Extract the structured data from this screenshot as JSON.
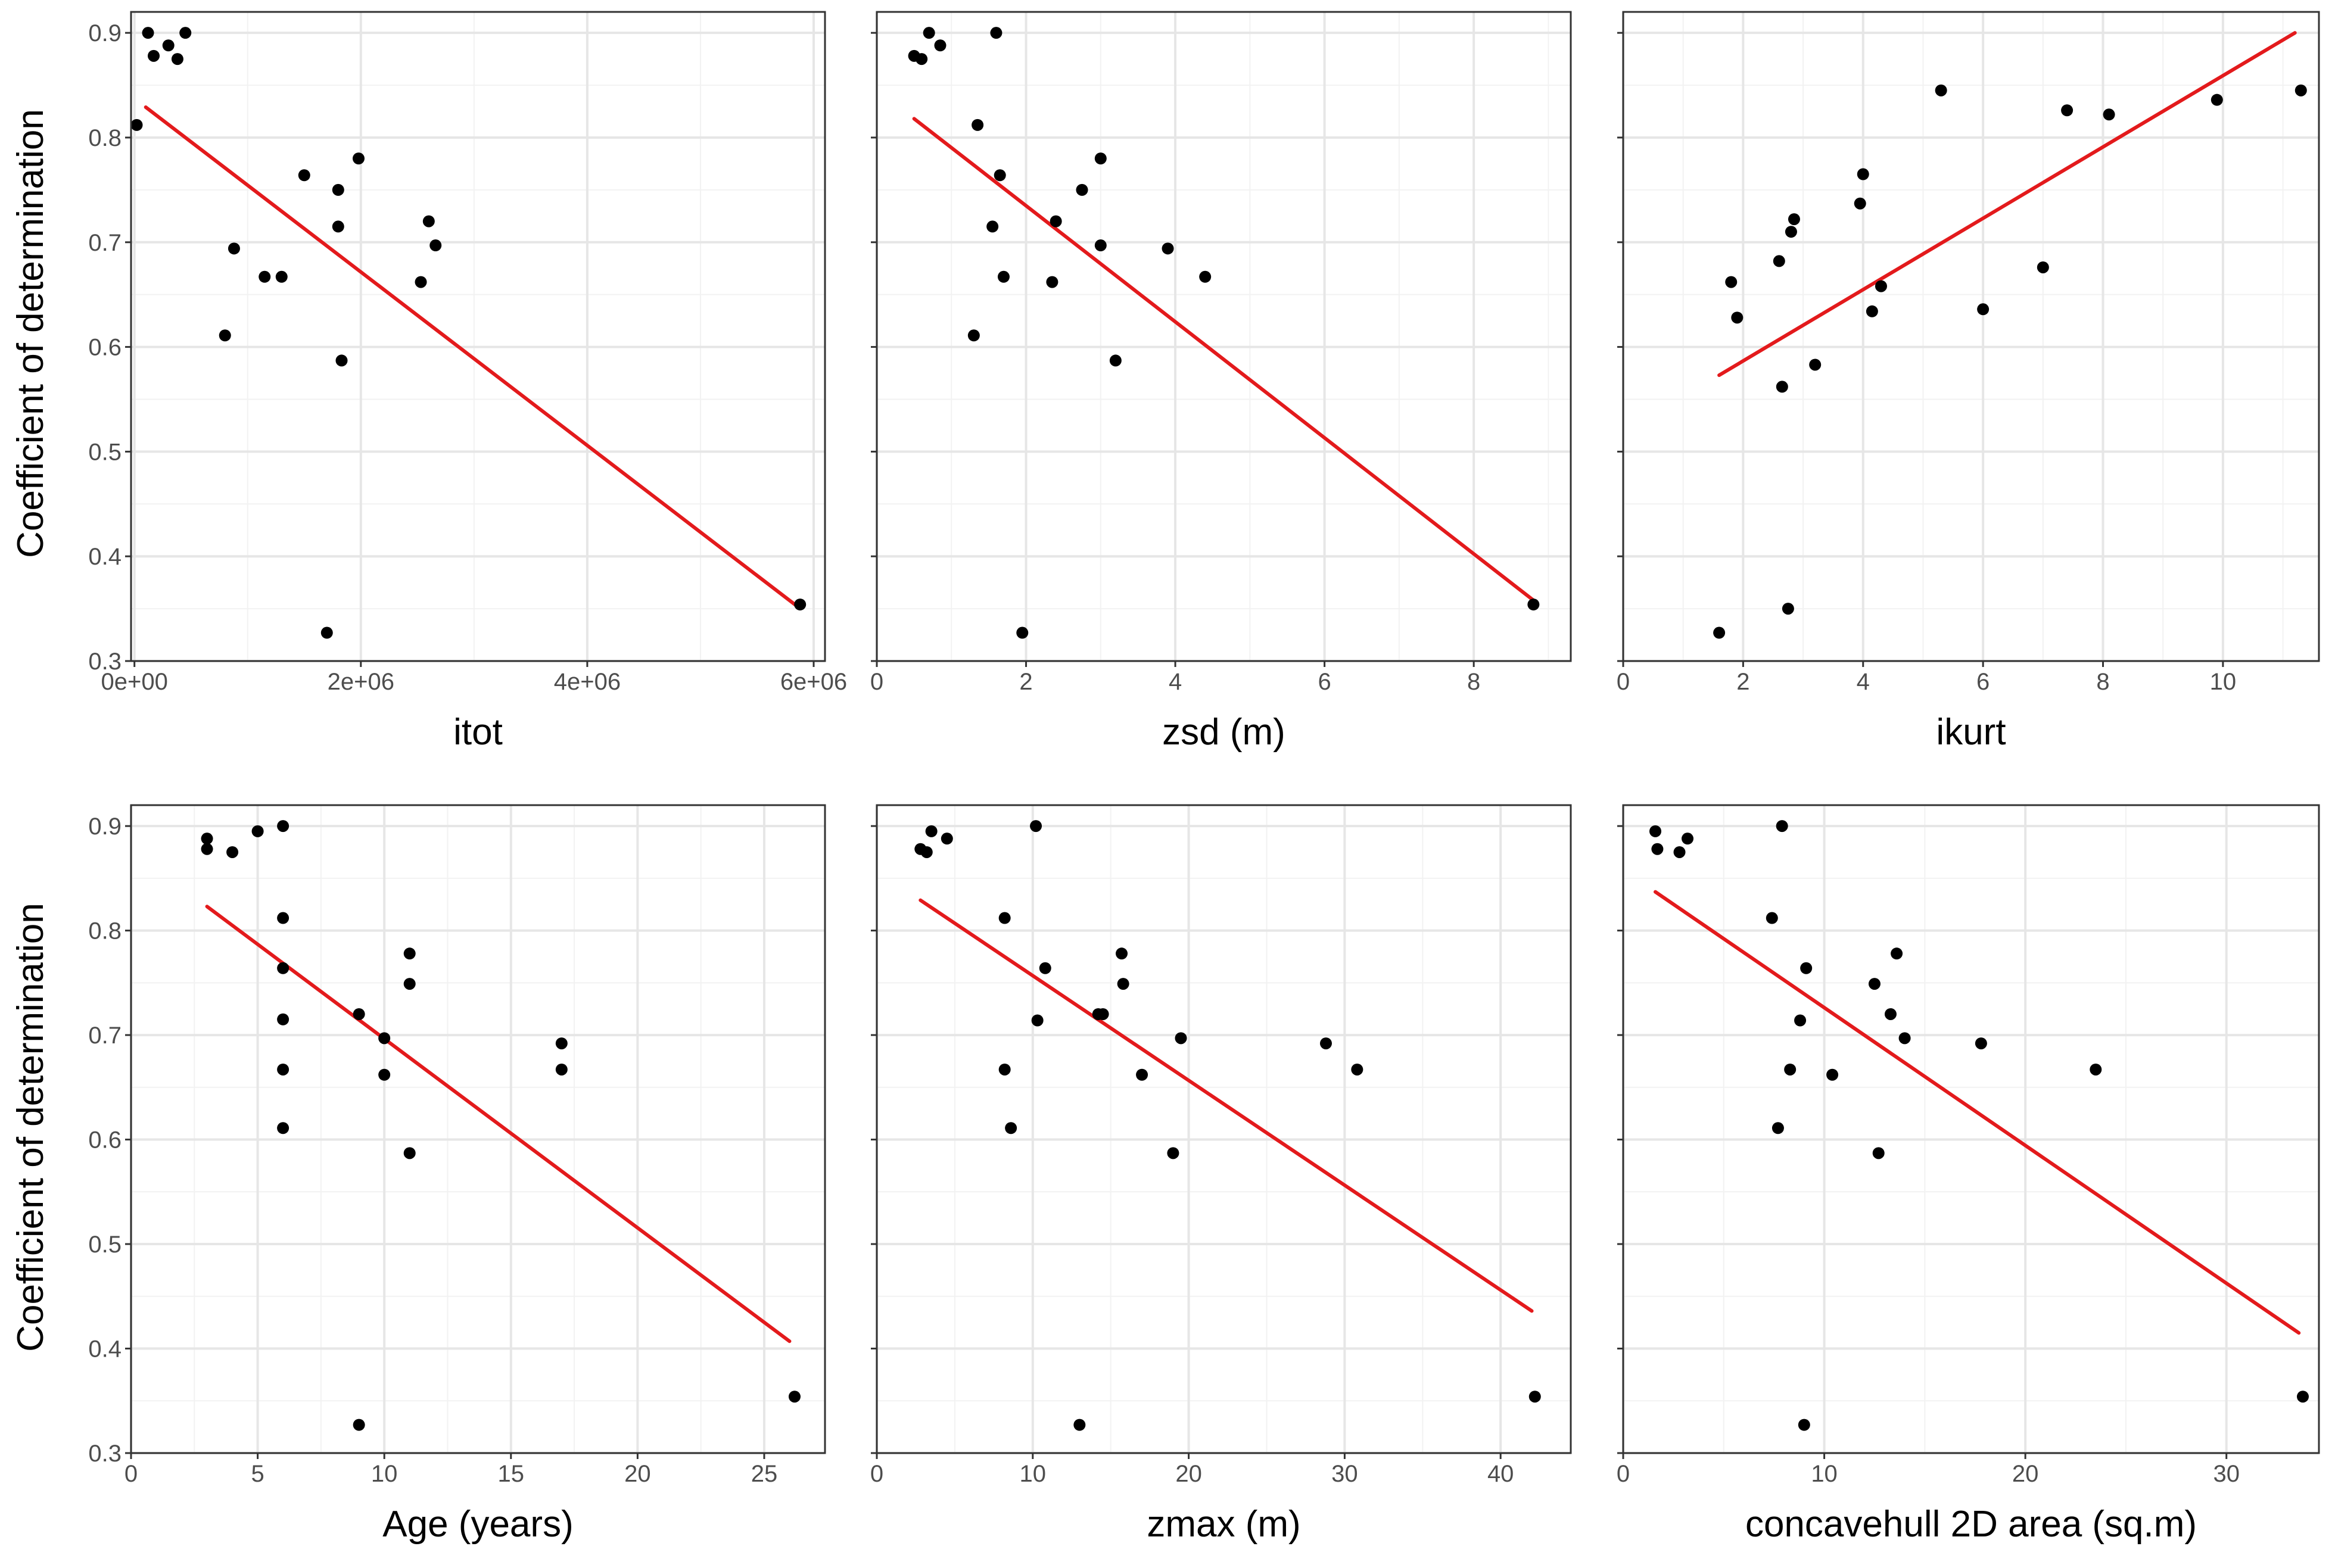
{
  "figure": {
    "ylabel": "Coefficient of determination",
    "point_color": "#000000",
    "line_color": "#e31a1c",
    "background": "#ffffff"
  },
  "chart_data": [
    {
      "type": "scatter",
      "xlabel": "itot",
      "ylabel": "Coefficient of determination",
      "xlim": [
        -30000,
        6100000
      ],
      "ylim": [
        0.3,
        0.92
      ],
      "xticks": [
        0,
        2000000,
        4000000,
        6000000
      ],
      "xtick_labels": [
        "0e+00",
        "2e+06",
        "4e+06",
        "6e+06"
      ],
      "yticks": [
        0.3,
        0.4,
        0.5,
        0.6,
        0.7,
        0.8,
        0.9
      ],
      "ytick_labels": [
        "0.3",
        "0.4",
        "0.5",
        "0.6",
        "0.7",
        "0.8",
        "0.9"
      ],
      "show_yticks": true,
      "x": [
        20000,
        120000,
        170000,
        300000,
        380000,
        450000,
        800000,
        880000,
        1150000,
        1300000,
        1500000,
        1700000,
        1800000,
        1800000,
        1830000,
        1980000,
        2530000,
        2600000,
        2660000,
        5880000
      ],
      "y": [
        0.812,
        0.9,
        0.878,
        0.888,
        0.875,
        0.9,
        0.611,
        0.694,
        0.667,
        0.667,
        0.764,
        0.327,
        0.75,
        0.715,
        0.587,
        0.78,
        0.662,
        0.72,
        0.697,
        0.354
      ],
      "fit": {
        "x": [
          100000,
          5870000
        ],
        "y": [
          0.829,
          0.351
        ]
      }
    },
    {
      "type": "scatter",
      "xlabel": "zsd (m)",
      "ylabel": "",
      "xlim": [
        0,
        9.3
      ],
      "ylim": [
        0.3,
        0.92
      ],
      "xticks": [
        0,
        2,
        4,
        6,
        8
      ],
      "xtick_labels": [
        "0",
        "2",
        "4",
        "6",
        "8"
      ],
      "yticks": [
        0.3,
        0.4,
        0.5,
        0.6,
        0.7,
        0.8,
        0.9
      ],
      "ytick_labels": [
        "0.3",
        "0.4",
        "0.5",
        "0.6",
        "0.7",
        "0.8",
        "0.9"
      ],
      "show_yticks": false,
      "x": [
        0.5,
        0.6,
        0.7,
        0.85,
        1.3,
        1.35,
        1.55,
        1.6,
        1.65,
        1.7,
        1.95,
        2.35,
        2.4,
        2.75,
        3.0,
        3.0,
        3.2,
        3.9,
        4.4,
        8.8
      ],
      "y": [
        0.878,
        0.875,
        0.9,
        0.888,
        0.611,
        0.812,
        0.715,
        0.9,
        0.764,
        0.667,
        0.327,
        0.662,
        0.72,
        0.75,
        0.697,
        0.78,
        0.587,
        0.694,
        0.667,
        0.354
      ],
      "fit": {
        "x": [
          0.5,
          8.8
        ],
        "y": [
          0.818,
          0.358
        ]
      }
    },
    {
      "type": "scatter",
      "xlabel": "ikurt",
      "ylabel": "",
      "xlim": [
        0,
        11.6
      ],
      "ylim": [
        0.3,
        0.92
      ],
      "xticks": [
        0,
        2,
        4,
        6,
        8,
        10
      ],
      "xtick_labels": [
        "0",
        "2",
        "4",
        "6",
        "8",
        "10"
      ],
      "yticks": [
        0.3,
        0.4,
        0.5,
        0.6,
        0.7,
        0.8,
        0.9
      ],
      "ytick_labels": [
        "0.3",
        "0.4",
        "0.5",
        "0.6",
        "0.7",
        "0.8",
        "0.9"
      ],
      "show_yticks": false,
      "x": [
        1.6,
        1.8,
        1.9,
        2.6,
        2.65,
        2.75,
        2.8,
        2.85,
        3.2,
        3.95,
        4.0,
        4.15,
        4.3,
        5.3,
        6.0,
        7.0,
        7.4,
        8.1,
        9.9,
        11.3
      ],
      "y": [
        0.327,
        0.662,
        0.628,
        0.682,
        0.562,
        0.35,
        0.71,
        0.722,
        0.583,
        0.737,
        0.765,
        0.634,
        0.658,
        0.845,
        0.636,
        0.676,
        0.826,
        0.822,
        0.836,
        0.845
      ],
      "fit": {
        "x": [
          1.6,
          11.2
        ],
        "y": [
          0.573,
          0.9
        ]
      }
    },
    {
      "type": "scatter",
      "xlabel": "Age (years)",
      "ylabel": "Coefficient of determination",
      "xlim": [
        0,
        27.4
      ],
      "ylim": [
        0.3,
        0.92
      ],
      "xticks": [
        0,
        5,
        10,
        15,
        20,
        25
      ],
      "xtick_labels": [
        "0",
        "5",
        "10",
        "15",
        "20",
        "25"
      ],
      "yticks": [
        0.3,
        0.4,
        0.5,
        0.6,
        0.7,
        0.8,
        0.9
      ],
      "ytick_labels": [
        "0.3",
        "0.4",
        "0.5",
        "0.6",
        "0.7",
        "0.8",
        "0.9"
      ],
      "show_yticks": true,
      "x": [
        3,
        3,
        4,
        5,
        6,
        6,
        6,
        6,
        6,
        6,
        9,
        9,
        10,
        10,
        11,
        11,
        11,
        17,
        17,
        26.2
      ],
      "y": [
        0.888,
        0.878,
        0.875,
        0.895,
        0.9,
        0.812,
        0.764,
        0.715,
        0.667,
        0.611,
        0.72,
        0.327,
        0.697,
        0.662,
        0.778,
        0.749,
        0.587,
        0.692,
        0.667,
        0.354
      ],
      "fit": {
        "x": [
          3,
          26
        ],
        "y": [
          0.823,
          0.407
        ]
      }
    },
    {
      "type": "scatter",
      "xlabel": "zmax (m)",
      "ylabel": "",
      "xlim": [
        0,
        44.5
      ],
      "ylim": [
        0.3,
        0.92
      ],
      "xticks": [
        0,
        10,
        20,
        30,
        40
      ],
      "xtick_labels": [
        "0",
        "10",
        "20",
        "30",
        "40"
      ],
      "yticks": [
        0.3,
        0.4,
        0.5,
        0.6,
        0.7,
        0.8,
        0.9
      ],
      "ytick_labels": [
        "0.3",
        "0.4",
        "0.5",
        "0.6",
        "0.7",
        "0.8",
        "0.9"
      ],
      "show_yticks": false,
      "x": [
        2.8,
        3.2,
        3.5,
        4.5,
        8.2,
        8.2,
        8.6,
        10.2,
        10.3,
        10.8,
        13.0,
        14.2,
        14.5,
        15.7,
        15.8,
        17.0,
        19.0,
        19.5,
        28.8,
        30.8,
        42.2
      ],
      "y": [
        0.878,
        0.875,
        0.895,
        0.888,
        0.812,
        0.667,
        0.611,
        0.9,
        0.714,
        0.764,
        0.327,
        0.72,
        0.72,
        0.778,
        0.749,
        0.662,
        0.587,
        0.697,
        0.692,
        0.667,
        0.354
      ],
      "fit": {
        "x": [
          2.8,
          42
        ],
        "y": [
          0.829,
          0.436
        ]
      }
    },
    {
      "type": "scatter",
      "xlabel": "concavehull 2D area (sq.m)",
      "ylabel": "",
      "xlim": [
        0,
        34.6
      ],
      "ylim": [
        0.3,
        0.92
      ],
      "xticks": [
        0,
        10,
        20,
        30
      ],
      "xtick_labels": [
        "0",
        "10",
        "20",
        "30"
      ],
      "yticks": [
        0.3,
        0.4,
        0.5,
        0.6,
        0.7,
        0.8,
        0.9
      ],
      "ytick_labels": [
        "0.3",
        "0.4",
        "0.5",
        "0.6",
        "0.7",
        "0.8",
        "0.9"
      ],
      "show_yticks": false,
      "x": [
        1.6,
        1.7,
        2.8,
        3.2,
        7.4,
        7.7,
        7.9,
        8.3,
        8.8,
        9.0,
        9.1,
        10.4,
        12.5,
        12.7,
        13.3,
        13.6,
        14.0,
        17.8,
        23.5,
        33.8
      ],
      "y": [
        0.895,
        0.878,
        0.875,
        0.888,
        0.812,
        0.611,
        0.9,
        0.667,
        0.714,
        0.327,
        0.764,
        0.662,
        0.749,
        0.587,
        0.72,
        0.778,
        0.697,
        0.692,
        0.667,
        0.354
      ],
      "fit": {
        "x": [
          1.6,
          33.6
        ],
        "y": [
          0.837,
          0.415
        ]
      }
    }
  ]
}
